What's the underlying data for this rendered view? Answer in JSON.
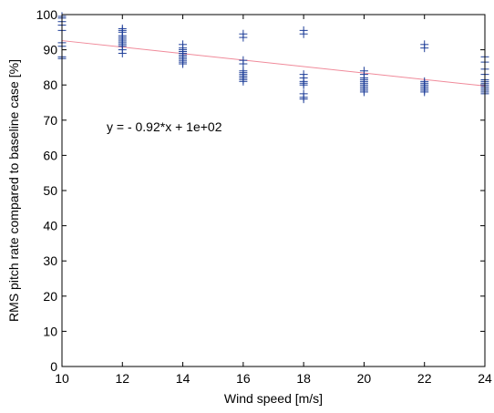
{
  "chart_data": {
    "type": "scatter",
    "title": "",
    "xlabel": "Wind speed [m/s]",
    "ylabel": "RMS pitch rate compared to baseline case [%]",
    "xlim": [
      10,
      24
    ],
    "ylim": [
      0,
      100
    ],
    "xticks": [
      10,
      12,
      14,
      16,
      18,
      20,
      22,
      24
    ],
    "yticks": [
      0,
      10,
      20,
      30,
      40,
      50,
      60,
      70,
      80,
      90,
      100
    ],
    "grid": false,
    "marker": "plus",
    "marker_color": "#1f3f99",
    "fit_color": "#f08a9a",
    "fit": {
      "slope": -0.92,
      "intercept": 101.8,
      "label": "y = - 0.92*x + 1e+02"
    },
    "series": [
      {
        "points": [
          [
            10,
            99.5
          ],
          [
            10,
            99
          ],
          [
            10,
            98
          ],
          [
            10,
            97
          ],
          [
            10,
            95.5
          ],
          [
            10,
            92
          ],
          [
            10,
            91
          ],
          [
            10,
            88
          ],
          [
            10,
            87.5
          ],
          [
            12,
            96
          ],
          [
            12,
            95.5
          ],
          [
            12,
            95
          ],
          [
            12,
            94
          ],
          [
            12,
            93.5
          ],
          [
            12,
            93
          ],
          [
            12,
            92.5
          ],
          [
            12,
            92
          ],
          [
            12,
            91.5
          ],
          [
            12,
            91
          ],
          [
            12,
            90
          ],
          [
            12,
            89
          ],
          [
            14,
            91.5
          ],
          [
            14,
            90.5
          ],
          [
            14,
            90
          ],
          [
            14,
            89.5
          ],
          [
            14,
            89
          ],
          [
            14,
            88.5
          ],
          [
            14,
            88
          ],
          [
            14,
            87.5
          ],
          [
            14,
            87
          ],
          [
            14,
            86.5
          ],
          [
            14,
            86
          ],
          [
            16,
            94.5
          ],
          [
            16,
            93.5
          ],
          [
            16,
            87
          ],
          [
            16,
            86
          ],
          [
            16,
            84
          ],
          [
            16,
            83.5
          ],
          [
            16,
            83
          ],
          [
            16,
            82.5
          ],
          [
            16,
            82
          ],
          [
            16,
            81.5
          ],
          [
            16,
            81
          ],
          [
            18,
            95.5
          ],
          [
            18,
            94.5
          ],
          [
            18,
            83
          ],
          [
            18,
            82
          ],
          [
            18,
            81
          ],
          [
            18,
            80.5
          ],
          [
            18,
            80
          ],
          [
            18,
            77.5
          ],
          [
            18,
            76.5
          ],
          [
            18,
            76
          ],
          [
            20,
            84
          ],
          [
            20,
            83
          ],
          [
            20,
            82
          ],
          [
            20,
            81.5
          ],
          [
            20,
            81
          ],
          [
            20,
            80.5
          ],
          [
            20,
            80
          ],
          [
            20,
            79.5
          ],
          [
            20,
            79
          ],
          [
            20,
            78.5
          ],
          [
            20,
            78
          ],
          [
            22,
            91.5
          ],
          [
            22,
            90.5
          ],
          [
            22,
            81
          ],
          [
            22,
            80.5
          ],
          [
            22,
            80
          ],
          [
            22,
            79.5
          ],
          [
            22,
            79
          ],
          [
            22,
            78.5
          ],
          [
            22,
            78
          ],
          [
            24,
            88
          ],
          [
            24,
            86.5
          ],
          [
            24,
            84.5
          ],
          [
            24,
            83
          ],
          [
            24,
            81.5
          ],
          [
            24,
            81
          ],
          [
            24,
            80.5
          ],
          [
            24,
            80
          ],
          [
            24,
            79.5
          ],
          [
            24,
            79
          ],
          [
            24,
            78.5
          ],
          [
            24,
            78
          ],
          [
            24,
            77.5
          ]
        ]
      }
    ]
  }
}
